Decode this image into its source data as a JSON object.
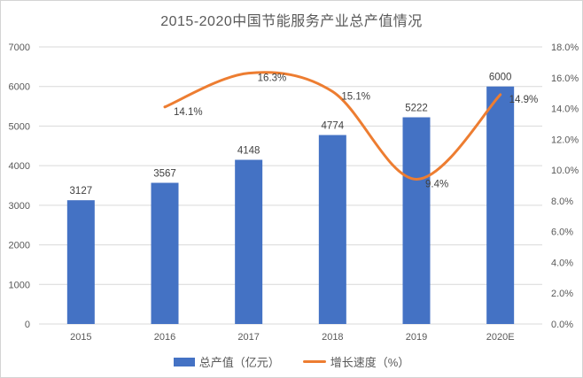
{
  "title": "2015-2020中国节能服务产业总产值情况",
  "colors": {
    "bar": "#4472C4",
    "line": "#ED7D31",
    "grid": "#D9D9D9",
    "axis_text": "#595959",
    "label_text": "#404040",
    "title_text": "#595959",
    "background": "#FFFFFF",
    "frame_border": "#D4D4D4"
  },
  "legend": [
    {
      "label": "总产值（亿元）",
      "type": "bar"
    },
    {
      "label": "增长速度（%）",
      "type": "line"
    }
  ],
  "chart_data": {
    "type": "bar+line",
    "title": "2015-2020中国节能服务产业总产值情况",
    "categories": [
      "2015",
      "2016",
      "2017",
      "2018",
      "2019",
      "2020E"
    ],
    "series": [
      {
        "name": "总产值（亿元）",
        "type": "bar",
        "axis": "left",
        "values": [
          3127,
          3567,
          4148,
          4774,
          5222,
          6000
        ],
        "labels": [
          "3127",
          "3567",
          "4148",
          "4774",
          "5222",
          "6000"
        ]
      },
      {
        "name": "增长速度（%）",
        "type": "line",
        "axis": "right",
        "smooth": true,
        "values": [
          null,
          14.1,
          16.3,
          15.1,
          9.4,
          14.9
        ],
        "labels": [
          null,
          "14.1%",
          "16.3%",
          "15.1%",
          "9.4%",
          "14.9%"
        ]
      }
    ],
    "left_axis": {
      "min": 0,
      "max": 7000,
      "step": 1000,
      "ticks": [
        "0",
        "1000",
        "2000",
        "3000",
        "4000",
        "5000",
        "6000",
        "7000"
      ]
    },
    "right_axis": {
      "min": 0,
      "max": 18,
      "step": 2,
      "ticks": [
        "0.0%",
        "2.0%",
        "4.0%",
        "6.0%",
        "8.0%",
        "10.0%",
        "12.0%",
        "14.0%",
        "16.0%",
        "18.0%"
      ]
    },
    "grid": "horizontal",
    "legend_position": "bottom"
  }
}
